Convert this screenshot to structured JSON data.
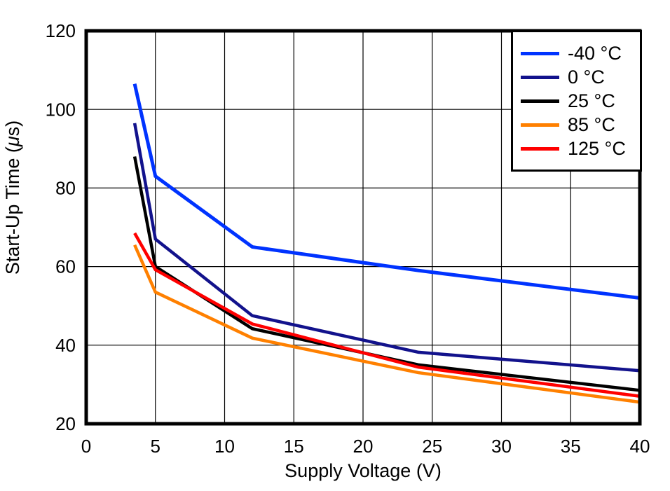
{
  "chart_data": {
    "type": "line",
    "title": "",
    "xlabel": "Supply Voltage (V)",
    "ylabel": "Start-Up Time (μs)",
    "xlim": [
      0,
      40
    ],
    "ylim": [
      20,
      120
    ],
    "x_ticks": [
      0,
      5,
      10,
      15,
      20,
      25,
      30,
      35,
      40
    ],
    "y_ticks": [
      20,
      40,
      60,
      80,
      100,
      120
    ],
    "grid": true,
    "grid_color": "#000000",
    "frame_color": "#000000",
    "background_color": "#ffffff",
    "legend_position": "top-right",
    "x": [
      3.5,
      5,
      12,
      24,
      40
    ],
    "series": [
      {
        "name": "-40 °C",
        "color": "#0033FF",
        "line_width": 5,
        "values": [
          106.5,
          83,
          65,
          59,
          52
        ]
      },
      {
        "name": "0 °C",
        "color": "#12128C",
        "line_width": 4.5,
        "values": [
          96.5,
          67,
          47.5,
          38.2,
          33.5
        ]
      },
      {
        "name": "25 °C",
        "color": "#000000",
        "line_width": 4.5,
        "values": [
          88,
          60,
          44.2,
          35,
          28.5
        ]
      },
      {
        "name": "85 °C",
        "color": "#FF8000",
        "line_width": 4.5,
        "values": [
          65.5,
          53.5,
          41.8,
          33,
          25.5
        ]
      },
      {
        "name": "125 °C",
        "color": "#FF0000",
        "line_width": 4.5,
        "values": [
          68.5,
          59.2,
          45.4,
          34.4,
          27
        ]
      }
    ]
  }
}
